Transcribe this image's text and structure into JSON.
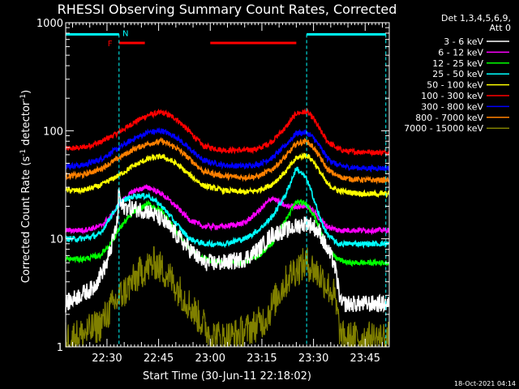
{
  "chart_data": {
    "type": "line",
    "title": "RHESSI Observing Summary Count Rates, Corrected",
    "xlabel": "Start Time (30-Jun-11 22:18:02)",
    "ylabel": "Corrected Count Rate (s-1 detector-1)",
    "ylabel_parts": {
      "prefix": "Corrected Count Rate (s",
      "exp1": "-1",
      "mid": " detector",
      "exp2": "-1",
      "suffix": ")"
    },
    "yscale": "log",
    "ylim": [
      1,
      1000
    ],
    "xlim_minutes": [
      0,
      94
    ],
    "y_tick_labels": [
      "1",
      "10",
      "100",
      "1000"
    ],
    "x_tick_labels": [
      "22:30",
      "22:45",
      "23:00",
      "23:15",
      "23:30",
      "23:45"
    ],
    "x_tick_minutes": [
      12,
      27,
      42,
      57,
      72,
      87
    ],
    "detector_info": [
      "Det 1,3,4,5,6,9,",
      "Att 0"
    ],
    "legend": [
      {
        "label": "3 - 6 keV",
        "color": "#ffffff"
      },
      {
        "label": "6 - 12 keV",
        "color": "#ff00ff"
      },
      {
        "label": "12 - 25 keV",
        "color": "#00ff00"
      },
      {
        "label": "25 - 50 keV",
        "color": "#00ffff"
      },
      {
        "label": "50 - 100 keV",
        "color": "#ffff00"
      },
      {
        "label": "100 - 300 keV",
        "color": "#ff0000"
      },
      {
        "label": "300 - 800 keV",
        "color": "#0000ff"
      },
      {
        "label": "800 - 7000 keV",
        "color": "#ff8000"
      },
      {
        "label": "7000 - 15000 keV",
        "color": "#808000"
      }
    ],
    "flag_markers": [
      {
        "label": "F",
        "color": "#ff0000"
      },
      {
        "label": "N",
        "color": "#00ffff"
      }
    ],
    "flag_bars": [
      {
        "name": "night",
        "color": "#00ffff",
        "level": 780,
        "segments": [
          [
            0,
            15.5
          ],
          [
            70,
            93
          ]
        ]
      },
      {
        "name": "flare",
        "color": "#ff0000",
        "level": 650,
        "segments": [
          [
            15.5,
            23
          ],
          [
            42,
            67
          ]
        ]
      }
    ],
    "vertical_markers_minutes": [
      15.5,
      70,
      93
    ],
    "series": [
      {
        "name": "red",
        "color": "#ff0000",
        "x": [
          0,
          5,
          10,
          15,
          20,
          24,
          28,
          32,
          36,
          40,
          46,
          52,
          56,
          60,
          64,
          67,
          70,
          72,
          74,
          76,
          79,
          82,
          87,
          90,
          94
        ],
        "y": [
          68,
          70,
          78,
          95,
          120,
          140,
          148,
          130,
          98,
          72,
          66,
          66,
          68,
          80,
          108,
          145,
          150,
          130,
          100,
          80,
          68,
          64,
          64,
          63,
          63
        ]
      },
      {
        "name": "blue",
        "color": "#0000ff",
        "x": [
          0,
          5,
          10,
          15,
          20,
          24,
          28,
          32,
          36,
          40,
          46,
          52,
          56,
          60,
          64,
          67,
          70,
          72,
          74,
          76,
          79,
          82,
          87,
          90,
          94
        ],
        "y": [
          47,
          48,
          54,
          68,
          85,
          97,
          100,
          88,
          68,
          53,
          48,
          47,
          49,
          56,
          74,
          95,
          96,
          86,
          70,
          56,
          48,
          46,
          45,
          45,
          45
        ]
      },
      {
        "name": "orange",
        "color": "#ff8000",
        "x": [
          0,
          5,
          10,
          15,
          20,
          24,
          28,
          32,
          36,
          40,
          46,
          52,
          56,
          60,
          64,
          67,
          70,
          72,
          74,
          76,
          79,
          82,
          87,
          90,
          94
        ],
        "y": [
          38,
          39,
          44,
          55,
          68,
          76,
          80,
          70,
          55,
          42,
          38,
          37,
          38,
          44,
          58,
          76,
          80,
          70,
          56,
          44,
          38,
          36,
          35,
          35,
          35
        ]
      },
      {
        "name": "yellow",
        "color": "#ffff00",
        "x": [
          0,
          5,
          10,
          15,
          20,
          24,
          28,
          32,
          36,
          40,
          46,
          52,
          56,
          60,
          64,
          67,
          70,
          72,
          74,
          76,
          79,
          82,
          87,
          90,
          94
        ],
        "y": [
          28,
          28,
          31,
          38,
          48,
          55,
          58,
          50,
          39,
          31,
          28,
          27,
          28,
          32,
          42,
          56,
          60,
          52,
          41,
          32,
          28,
          27,
          26,
          26,
          26
        ]
      },
      {
        "name": "magenta",
        "color": "#ff00ff",
        "x": [
          0,
          5,
          10,
          13,
          16,
          20,
          24,
          28,
          32,
          36,
          40,
          46,
          52,
          56,
          60,
          64,
          67,
          70,
          72,
          74,
          76,
          79,
          82,
          87,
          94
        ],
        "y": [
          12,
          12,
          13,
          16,
          22,
          28,
          30,
          26,
          20,
          15,
          13,
          13,
          14,
          18,
          24,
          20,
          20,
          20,
          18,
          15,
          13,
          12,
          12,
          12,
          12
        ]
      },
      {
        "name": "cyan",
        "color": "#00ffff",
        "x": [
          0,
          5,
          10,
          13,
          16,
          20,
          24,
          28,
          32,
          36,
          40,
          46,
          52,
          56,
          60,
          64,
          67,
          70,
          72,
          74,
          76,
          79,
          82,
          87,
          94
        ],
        "y": [
          10,
          10,
          11,
          16,
          22,
          25,
          25,
          20,
          14,
          10,
          9,
          9,
          10,
          12,
          16,
          26,
          45,
          36,
          24,
          15,
          11,
          9,
          9,
          9,
          9
        ]
      },
      {
        "name": "green",
        "color": "#00ff00",
        "x": [
          0,
          5,
          10,
          13,
          16,
          20,
          24,
          28,
          32,
          36,
          40,
          46,
          52,
          56,
          60,
          64,
          67,
          70,
          72,
          74,
          76,
          79,
          82,
          87,
          94
        ],
        "y": [
          6.5,
          6.5,
          7,
          9,
          13,
          18,
          21,
          18,
          12,
          8,
          6.5,
          6,
          6,
          7,
          9,
          15,
          22,
          21,
          17,
          12,
          8,
          6.5,
          6,
          6,
          6
        ]
      },
      {
        "name": "white",
        "color": "#ffffff",
        "x": [
          0,
          4,
          8,
          12,
          15,
          15.5,
          16,
          20,
          24,
          28,
          32,
          36,
          40,
          46,
          52,
          56,
          60,
          64,
          67,
          70,
          72,
          74,
          76,
          78,
          80,
          82,
          86,
          90,
          94
        ],
        "y": [
          2.5,
          3,
          3.5,
          6,
          14,
          30,
          20,
          19,
          18,
          15,
          11,
          8,
          6,
          6,
          6.5,
          8,
          11,
          12,
          13,
          14,
          13,
          11,
          8,
          6,
          2.5,
          2.5,
          2.5,
          2.5,
          2.5
        ]
      },
      {
        "name": "olive",
        "color": "#808000",
        "x": [
          0,
          5,
          10,
          14,
          18,
          22,
          26,
          30,
          34,
          38,
          42,
          46,
          50,
          54,
          58,
          62,
          66,
          70,
          74,
          78,
          80,
          84,
          88,
          94
        ],
        "y": [
          1.2,
          1.3,
          1.6,
          2.5,
          3.5,
          5,
          6,
          4.5,
          3,
          2,
          1.3,
          1.2,
          1.3,
          1.5,
          1.8,
          3.2,
          5,
          6,
          4.5,
          3,
          1.2,
          1.2,
          1.2,
          1.2
        ]
      }
    ]
  },
  "footer": {
    "timestamp": "18-Oct-2021 04:14"
  }
}
